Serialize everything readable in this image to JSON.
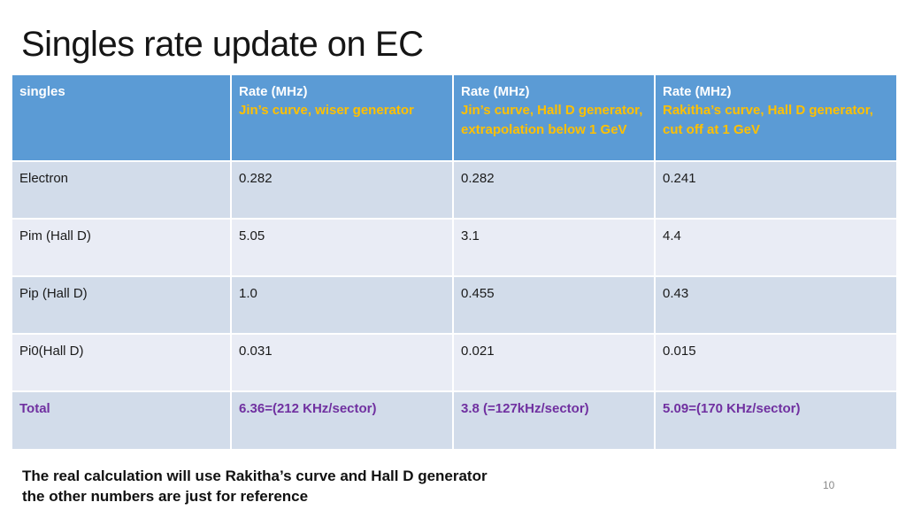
{
  "slide": {
    "title": "Singles rate update on EC",
    "footer_line1": "The real calculation will use Rakitha’s curve and Hall D generator",
    "footer_line2": "the other numbers are just for reference",
    "page_number": "10"
  },
  "colors": {
    "header_bg": "#5B9BD5",
    "band_dark": "#D2DCEA",
    "band_light": "#E9ECF5",
    "header_subtitle_gold": "#FFC000",
    "total_purple": "#7030A0"
  },
  "chart_data": {
    "type": "table",
    "title": "Singles rate update on EC",
    "columns": [
      "singles",
      "Rate (MHz) — Jin’s curve, wiser generator",
      "Rate (MHz) — Jin’s curve, Hall D generator, extrapolation below 1 GeV",
      "Rate (MHz) — Rakitha’s curve, Hall D generator, cut off at 1 GeV"
    ],
    "rows": [
      [
        "Electron",
        0.282,
        0.282,
        0.241
      ],
      [
        "Pim (Hall D)",
        5.05,
        3.1,
        4.4
      ],
      [
        "Pip (Hall D)",
        1.0,
        0.455,
        0.43
      ],
      [
        "Pi0(Hall D)",
        0.031,
        0.021,
        0.015
      ],
      [
        "Total",
        "6.36=(212 KHz/sector)",
        "3.8 (=127kHz/sector)",
        "5.09=(170 KHz/sector)"
      ]
    ]
  },
  "table": {
    "headers": [
      {
        "title": "singles",
        "subtitle": ""
      },
      {
        "title": "Rate (MHz)",
        "subtitle": "Jin’s curve, wiser generator"
      },
      {
        "title": "Rate (MHz)",
        "subtitle": "Jin’s curve, Hall D generator, extrapolation below 1 GeV"
      },
      {
        "title": "Rate (MHz)",
        "subtitle": "Rakitha’s curve, Hall D generator, cut off at 1 GeV"
      }
    ],
    "rows": [
      {
        "cells": [
          "Electron",
          "0.282",
          "0.282",
          "0.241"
        ]
      },
      {
        "cells": [
          "Pim (Hall D)",
          "5.05",
          "3.1",
          "4.4"
        ]
      },
      {
        "cells": [
          "Pip (Hall D)",
          "1.0",
          "0.455",
          "0.43"
        ]
      },
      {
        "cells": [
          "Pi0(Hall D)",
          "0.031",
          "0.021",
          "0.015"
        ]
      },
      {
        "cells": [
          "Total",
          "6.36=(212 KHz/sector)",
          "3.8 (=127kHz/sector)",
          "5.09=(170 KHz/sector)"
        ]
      }
    ]
  }
}
